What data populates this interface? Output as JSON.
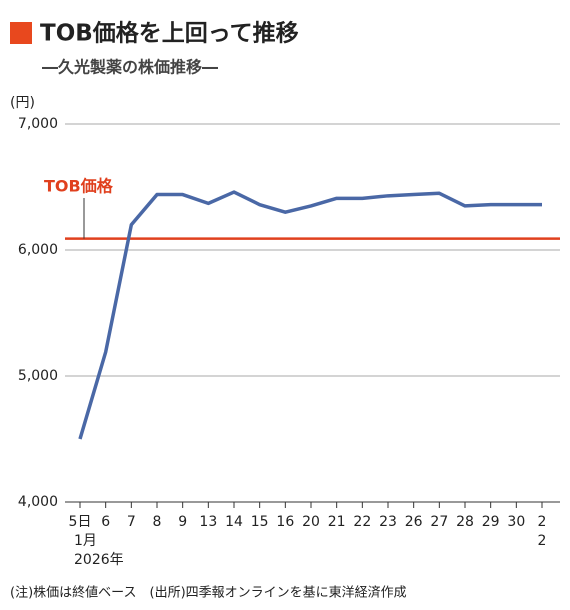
{
  "chart_data": {
    "type": "line",
    "title": "TOB価格を上回って推移",
    "subtitle": "―久光製薬の株価推移―",
    "y_unit": "(円)",
    "categories": [
      "5日",
      "6",
      "7",
      "8",
      "9",
      "13",
      "14",
      "15",
      "16",
      "20",
      "21",
      "22",
      "23",
      "26",
      "27",
      "28",
      "29",
      "30",
      "2"
    ],
    "x_sublabels": [
      [
        "1月",
        "2026年"
      ],
      null,
      null,
      null,
      null,
      null,
      null,
      null,
      null,
      null,
      null,
      null,
      null,
      null,
      null,
      null,
      null,
      null,
      [
        "2"
      ]
    ],
    "series": [
      {
        "name": "株価",
        "color": "#4a68a6",
        "values": [
          4500,
          5190,
          6200,
          6440,
          6440,
          6370,
          6460,
          6360,
          6300,
          6350,
          6410,
          6410,
          6430,
          6440,
          6450,
          6350,
          6360,
          6360,
          6360
        ]
      }
    ],
    "reference_line": {
      "value": 6090,
      "label": "TOB価格",
      "color": "#e0401e"
    },
    "ylim": [
      4000,
      7000
    ],
    "yticks": [
      {
        "value": 4000,
        "label": "4,000"
      },
      {
        "value": 5000,
        "label": "5,000"
      },
      {
        "value": 6000,
        "label": "6,000"
      },
      {
        "value": 7000,
        "label": "7,000"
      }
    ],
    "grid": true,
    "note": "(注)株価は終値ベース　(出所)四季報オンラインを基に東洋経済作成"
  }
}
